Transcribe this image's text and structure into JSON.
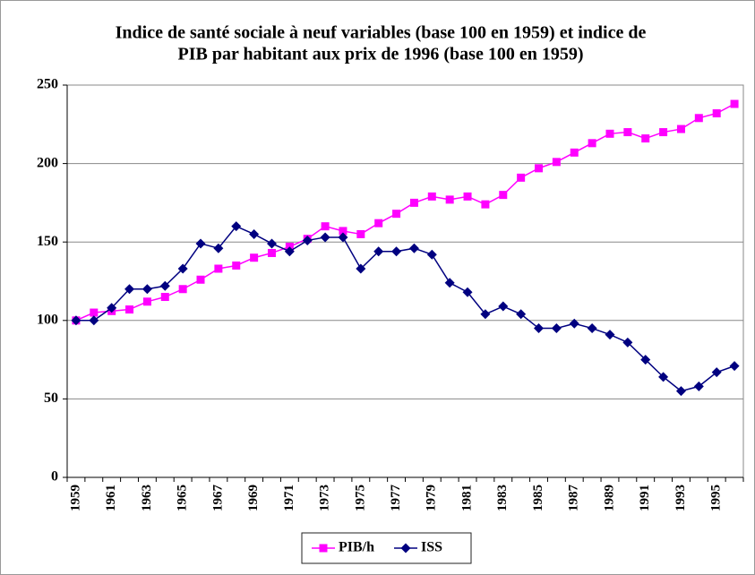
{
  "chart_data": {
    "type": "line",
    "title": [
      "Indice de santé sociale à neuf variables (base 100 en 1959) et indice de",
      "PIB par habitant aux prix de 1996 (base 100 en 1959)"
    ],
    "categories": [
      "1959",
      null,
      "1961",
      null,
      "1963",
      null,
      "1965",
      null,
      "1967",
      null,
      "1969",
      null,
      "1971",
      null,
      "1973",
      null,
      "1975",
      null,
      "1977",
      null,
      "1979",
      null,
      "1981",
      null,
      "1983",
      null,
      "1985",
      null,
      "1987",
      null,
      "1989",
      null,
      "1991",
      null,
      "1993",
      null,
      "1995",
      null
    ],
    "series": [
      {
        "name": "PIB/h",
        "color": "#ff00ff",
        "marker": "square",
        "values": [
          100,
          105,
          106,
          107,
          112,
          115,
          120,
          126,
          133,
          135,
          140,
          143,
          147,
          152,
          160,
          157,
          155,
          162,
          168,
          175,
          179,
          177,
          179,
          174,
          180,
          191,
          197,
          201,
          207,
          213,
          219,
          220,
          216,
          220,
          222,
          229,
          232,
          238
        ]
      },
      {
        "name": "ISS",
        "color": "#000080",
        "marker": "diamond",
        "values": [
          100,
          100,
          108,
          120,
          120,
          122,
          133,
          149,
          146,
          160,
          155,
          149,
          144,
          151,
          153,
          153,
          133,
          144,
          144,
          146,
          142,
          124,
          118,
          104,
          109,
          104,
          95,
          95,
          98,
          95,
          91,
          86,
          75,
          64,
          55,
          58,
          67,
          71
        ]
      }
    ],
    "ylim": [
      0,
      250
    ],
    "yticks": [
      0,
      50,
      100,
      150,
      200,
      250
    ],
    "grid": true,
    "legend": "bottom"
  }
}
